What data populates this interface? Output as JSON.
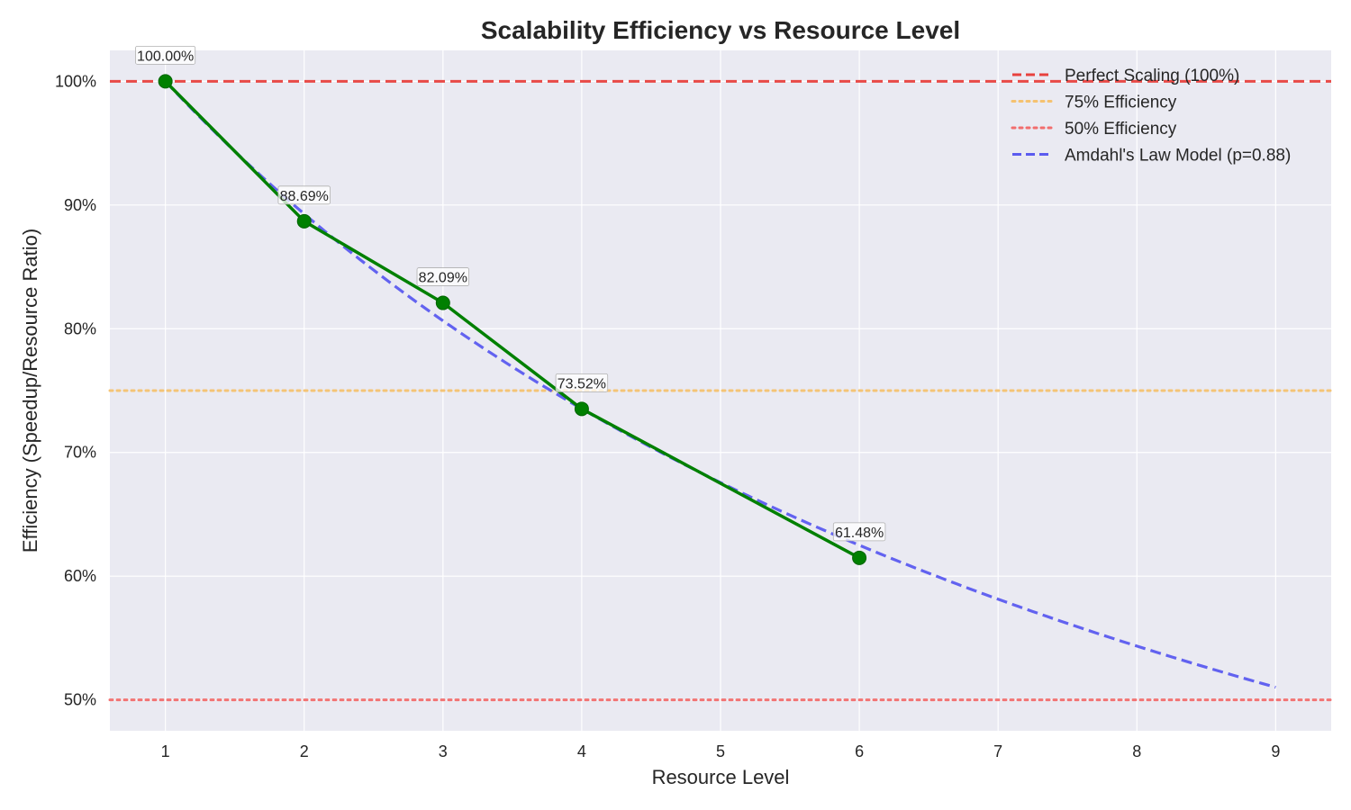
{
  "chart_data": {
    "type": "line",
    "title": "Scalability Efficiency vs Resource Level",
    "xlabel": "Resource Level",
    "ylabel": "Efficiency (Speedup/Resource Ratio)",
    "xlim": [
      0.6,
      9.4
    ],
    "ylim": [
      47.5,
      102.5
    ],
    "x_ticks": [
      1,
      2,
      3,
      4,
      5,
      6,
      7,
      8,
      9
    ],
    "y_ticks": [
      50,
      60,
      70,
      80,
      90,
      100
    ],
    "y_tick_labels": [
      "50%",
      "60%",
      "70%",
      "80%",
      "90%",
      "100%"
    ],
    "grid": true,
    "legend_position": "top-right",
    "series": [
      {
        "x": [
          1,
          2,
          3,
          4,
          6
        ],
        "values": [
          100.0,
          88.69,
          82.09,
          73.52,
          61.48
        ],
        "data_labels": [
          "100.00%",
          "88.69%",
          "82.09%",
          "73.52%",
          "61.48%"
        ],
        "color": "#008000",
        "style": "solid",
        "markers": true
      }
    ],
    "reference_lines": [
      {
        "name": "Perfect Scaling (100%)",
        "y": 100,
        "color": "#e8413e",
        "style": "dashed"
      },
      {
        "name": "75% Efficiency",
        "y": 75,
        "color": "#f5c270",
        "style": "dotted"
      },
      {
        "name": "50% Efficiency",
        "y": 50,
        "color": "#f26d6d",
        "style": "dotted"
      }
    ],
    "model": {
      "name": "Amdahl's Law Model (p=0.88)",
      "p": 0.88,
      "x_range": [
        1,
        9
      ],
      "color": "#5b5bef",
      "style": "dashed"
    },
    "colors": {
      "plot_background": "#eaeaf2",
      "grid": "#ffffff"
    }
  }
}
